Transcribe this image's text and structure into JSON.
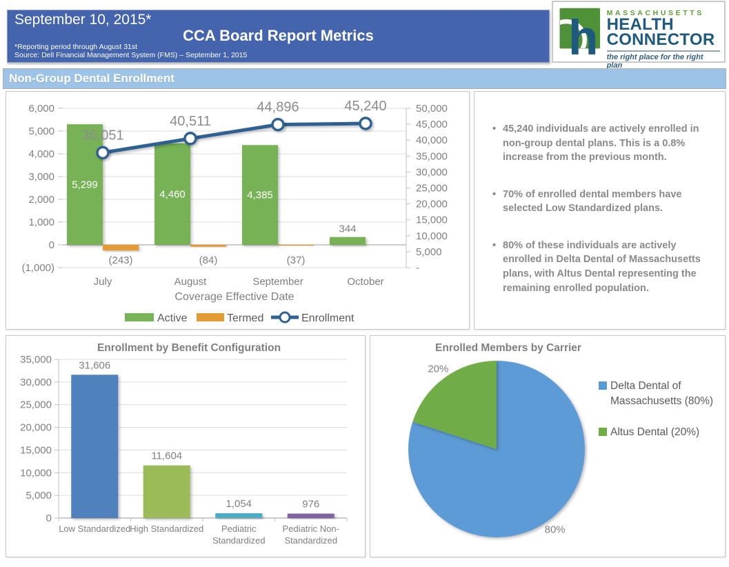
{
  "header": {
    "date": "September 10, 2015*",
    "title": "CCA Board Report Metrics",
    "footnote1": "*Reporting period through August 31st",
    "footnote2": "Source: Dell Financial Management System (FMS) – September 1, 2015",
    "logo": {
      "region": "MASSACHUSETTS",
      "name_line1": "HEALTH",
      "name_line2": "CONNECTOR",
      "tagline": "the right place for the right plan",
      "icon_letter": "h"
    }
  },
  "section_title": "Non-Group Dental Enrollment",
  "insights": {
    "bullets": [
      "45,240 individuals are actively enrolled in non-group dental plans. This is a 0.8% increase from the previous month.",
      "70% of enrolled dental members have selected Low Standardized plans.",
      "80% of these individuals are actively enrolled in Delta Dental of Massachusetts plans, with Altus Dental representing the remaining enrolled population."
    ]
  },
  "colors": {
    "header_blue": "#4464ae",
    "section_blue": "#9dc3e6",
    "panel_border": "#c6c6c6",
    "logo_green": "#4f9136",
    "logo_blue": "#1d5a7d",
    "logo_region_green": "#5a9e33",
    "logo_tagline": "#33607e",
    "text_gray": "#7f7f7f",
    "legend_gray": "#595959",
    "bullet_gray": "#8a8a8a"
  },
  "chart_data": [
    {
      "id": "enrollment-trend",
      "type": "bar+line",
      "categories": [
        "July",
        "August",
        "September",
        "October"
      ],
      "xlabel": "Coverage Effective Date",
      "legend_position": "bottom",
      "grid": true,
      "series": [
        {
          "name": "Active",
          "type": "bar",
          "axis": "left",
          "color": "#77b357",
          "values": [
            5299,
            4460,
            4385,
            344
          ],
          "labels": [
            "5,299",
            "4,460",
            "4,385",
            "344"
          ]
        },
        {
          "name": "Termed",
          "type": "bar",
          "axis": "left",
          "color": "#e59b33",
          "values": [
            -243,
            -84,
            -37,
            null
          ],
          "labels": [
            "(243)",
            "(84)",
            "(37)",
            ""
          ]
        },
        {
          "name": "Enrollment",
          "type": "line",
          "axis": "right",
          "color": "#2f6192",
          "values": [
            36051,
            40511,
            44896,
            45240
          ],
          "labels": [
            "36,051",
            "40,511",
            "44,896",
            "45,240"
          ]
        }
      ],
      "left_axis": {
        "min": -1000,
        "max": 6000,
        "step": 1000,
        "ticks": [
          "6,000",
          "5,000",
          "4,000",
          "3,000",
          "2,000",
          "1,000",
          "0",
          "(1,000)"
        ]
      },
      "right_axis": {
        "min": 0,
        "max": 50000,
        "step": 5000,
        "ticks": [
          "50,000",
          "45,000",
          "40,000",
          "35,000",
          "30,000",
          "25,000",
          "20,000",
          "15,000",
          "10,000",
          "5,000",
          "-"
        ]
      }
    },
    {
      "id": "benefit-configuration",
      "type": "bar",
      "title": "Enrollment by Benefit Configuration",
      "categories": [
        [
          "Low Standardized"
        ],
        [
          "High Standardized"
        ],
        [
          "Pediatric",
          "Standardized"
        ],
        [
          "Pediatric Non-",
          "Standardized"
        ]
      ],
      "values": [
        31606,
        11604,
        1054,
        976
      ],
      "labels": [
        "31,606",
        "11,604",
        "1,054",
        "976"
      ],
      "colors": [
        "#4f81bd",
        "#9bbb59",
        "#4bacc6",
        "#8064a2"
      ],
      "ylim": [
        0,
        35000
      ],
      "ytick_step": 5000,
      "yticks": [
        "35,000",
        "30,000",
        "25,000",
        "20,000",
        "15,000",
        "10,000",
        "5,000",
        "0"
      ],
      "grid": true
    },
    {
      "id": "members-by-carrier",
      "type": "pie",
      "title": "Enrolled Members by Carrier",
      "legend_position": "right",
      "slices": [
        {
          "label": "Delta Dental of Massachusetts (80%)",
          "legend_lines": [
            "Delta Dental of",
            "Massachusetts (80%)"
          ],
          "value": 80,
          "color": "#5b9bd5",
          "pct_label": "80%"
        },
        {
          "label": "Altus Dental (20%)",
          "legend_lines": [
            "Altus Dental (20%)"
          ],
          "value": 20,
          "color": "#70ad47",
          "pct_label": "20%"
        }
      ]
    }
  ]
}
